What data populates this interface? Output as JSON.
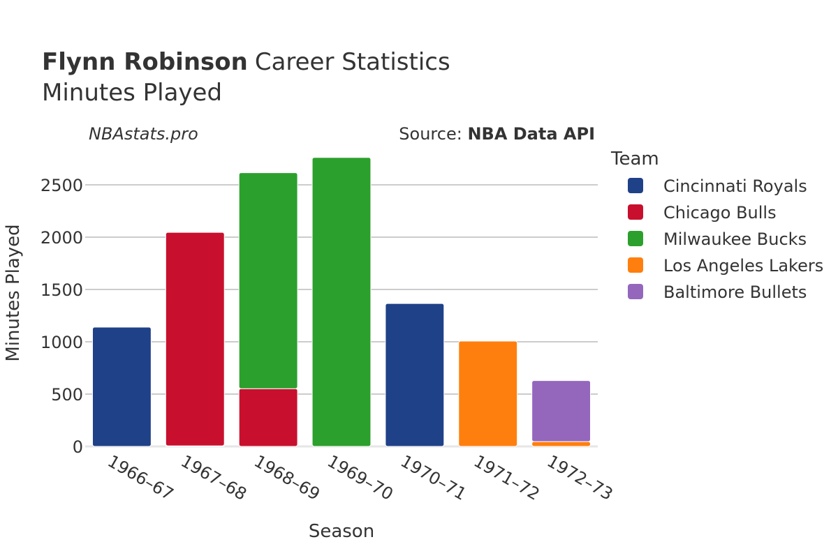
{
  "chart_data": {
    "type": "bar",
    "stacked": true,
    "title_bold": "Flynn Robinson",
    "title_rest": "Career Statistics",
    "subtitle": "Minutes Played",
    "watermark": "NBAstats.pro",
    "source_prefix": "Source: ",
    "source_name": "NBA Data API",
    "xlabel": "Season",
    "ylabel": "Minutes Played",
    "ylim": [
      0,
      2800
    ],
    "yticks": [
      0,
      500,
      1000,
      1500,
      2000,
      2500
    ],
    "grid": true,
    "legend_title": "Team",
    "legend_position": "right",
    "categories": [
      "1966–67",
      "1967–68",
      "1968–69",
      "1969–70",
      "1970–71",
      "1971–72",
      "1972–73"
    ],
    "series": [
      {
        "name": "Cincinnati Royals",
        "color": "#1f4188",
        "values": [
          1140,
          5,
          0,
          0,
          1366,
          0,
          0
        ]
      },
      {
        "name": "Chicago Bulls",
        "color": "#c8102e",
        "values": [
          0,
          2041,
          552,
          0,
          0,
          0,
          0
        ]
      },
      {
        "name": "Milwaukee Bucks",
        "color": "#2ca02c",
        "values": [
          0,
          0,
          2064,
          2762,
          0,
          0,
          0
        ]
      },
      {
        "name": "Los Angeles Lakers",
        "color": "#ff7f0e",
        "values": [
          0,
          0,
          0,
          0,
          0,
          1007,
          46
        ]
      },
      {
        "name": "Baltimore Bullets",
        "color": "#9467bd",
        "values": [
          0,
          0,
          0,
          0,
          0,
          0,
          583
        ]
      }
    ]
  }
}
